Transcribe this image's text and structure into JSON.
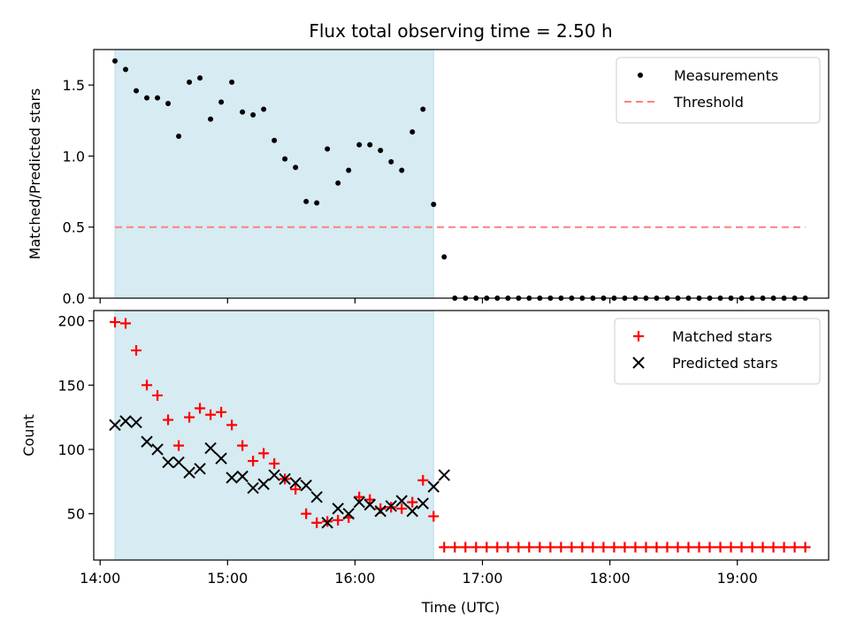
{
  "figure": {
    "title": "Flux total observing time = 2.50 h"
  },
  "colors": {
    "shade": "#add8e6",
    "measurement": "#000000",
    "threshold": "#ff7f7f",
    "matched": "#ff0000",
    "predicted": "#000000"
  },
  "chart_data": [
    {
      "type": "scatter",
      "title": "Flux total observing time = 2.50 h",
      "xlabel": "",
      "ylabel": "Matched/Predicted stars",
      "xlim": [
        "13:57",
        "19:43"
      ],
      "ylim": [
        0,
        1.75
      ],
      "yticks": [
        0.0,
        0.5,
        1.0,
        1.5
      ],
      "ytick_labels": [
        "0.0",
        "0.5",
        "1.0",
        "1.5"
      ],
      "xticks": [
        "14:00",
        "15:00",
        "16:00",
        "17:00",
        "18:00",
        "19:00"
      ],
      "shaded_interval": [
        "14:07",
        "16:37"
      ],
      "legend": "top-right",
      "threshold": {
        "name": "Threshold",
        "value": 0.5,
        "x_range": [
          "14:07",
          "19:32"
        ]
      },
      "series": [
        {
          "name": "Measurements",
          "marker": "dot",
          "x": [
            "14:07",
            "14:12",
            "14:17",
            "14:22",
            "14:27",
            "14:32",
            "14:37",
            "14:42",
            "14:47",
            "14:52",
            "14:57",
            "15:02",
            "15:07",
            "15:12",
            "15:17",
            "15:22",
            "15:27",
            "15:32",
            "15:37",
            "15:42",
            "15:47",
            "15:52",
            "15:57",
            "16:02",
            "16:07",
            "16:12",
            "16:17",
            "16:22",
            "16:27",
            "16:32",
            "16:37",
            "16:42",
            "16:47",
            "16:52",
            "16:57",
            "17:02",
            "17:07",
            "17:12",
            "17:17",
            "17:22",
            "17:27",
            "17:32",
            "17:37",
            "17:42",
            "17:47",
            "17:52",
            "17:57",
            "18:02",
            "18:07",
            "18:12",
            "18:17",
            "18:22",
            "18:27",
            "18:32",
            "18:37",
            "18:42",
            "18:47",
            "18:52",
            "18:57",
            "19:02",
            "19:07",
            "19:12",
            "19:17",
            "19:22",
            "19:27",
            "19:32"
          ],
          "y": [
            1.67,
            1.61,
            1.46,
            1.41,
            1.41,
            1.37,
            1.14,
            1.52,
            1.55,
            1.26,
            1.38,
            1.52,
            1.31,
            1.29,
            1.33,
            1.11,
            0.98,
            0.92,
            0.68,
            0.67,
            1.05,
            0.81,
            0.9,
            1.08,
            1.08,
            1.04,
            0.96,
            0.9,
            1.17,
            1.33,
            0.66,
            0.29,
            0,
            0,
            0,
            0,
            0,
            0,
            0,
            0,
            0,
            0,
            0,
            0,
            0,
            0,
            0,
            0,
            0,
            0,
            0,
            0,
            0,
            0,
            0,
            0,
            0,
            0,
            0,
            0,
            0,
            0,
            0,
            0,
            0,
            0
          ]
        }
      ]
    },
    {
      "type": "scatter",
      "title": "",
      "xlabel": "Time (UTC)",
      "ylabel": "Count",
      "xlim": [
        "13:57",
        "19:43"
      ],
      "ylim": [
        14,
        208
      ],
      "yticks": [
        50,
        100,
        150,
        200
      ],
      "ytick_labels": [
        "50",
        "100",
        "150",
        "200"
      ],
      "xticks": [
        "14:00",
        "15:00",
        "16:00",
        "17:00",
        "18:00",
        "19:00"
      ],
      "xtick_labels": [
        "14:00",
        "15:00",
        "16:00",
        "17:00",
        "18:00",
        "19:00"
      ],
      "shaded_interval": [
        "14:07",
        "16:37"
      ],
      "legend": "top-right",
      "series": [
        {
          "name": "Matched stars",
          "marker": "plus",
          "x": [
            "14:07",
            "14:12",
            "14:17",
            "14:22",
            "14:27",
            "14:32",
            "14:37",
            "14:42",
            "14:47",
            "14:52",
            "14:57",
            "15:02",
            "15:07",
            "15:12",
            "15:17",
            "15:22",
            "15:27",
            "15:32",
            "15:37",
            "15:42",
            "15:47",
            "15:52",
            "15:57",
            "16:02",
            "16:07",
            "16:12",
            "16:17",
            "16:22",
            "16:27",
            "16:32",
            "16:37",
            "16:42",
            "16:47",
            "16:52",
            "16:57",
            "17:02",
            "17:07",
            "17:12",
            "17:17",
            "17:22",
            "17:27",
            "17:32",
            "17:37",
            "17:42",
            "17:47",
            "17:52",
            "17:57",
            "18:02",
            "18:07",
            "18:12",
            "18:17",
            "18:22",
            "18:27",
            "18:32",
            "18:37",
            "18:42",
            "18:47",
            "18:52",
            "18:57",
            "19:02",
            "19:07",
            "19:12",
            "19:17",
            "19:22",
            "19:27",
            "19:32"
          ],
          "y": [
            199,
            198,
            177,
            150,
            142,
            123,
            103,
            125,
            132,
            127,
            129,
            119,
            103,
            91,
            97,
            89,
            77,
            69,
            50,
            43,
            44,
            45,
            47,
            63,
            61,
            54,
            55,
            54,
            59,
            76,
            48,
            24,
            24,
            24,
            24,
            24,
            24,
            24,
            24,
            24,
            24,
            24,
            24,
            24,
            24,
            24,
            24,
            24,
            24,
            24,
            24,
            24,
            24,
            24,
            24,
            24,
            24,
            24,
            24,
            24,
            24,
            24,
            24,
            24,
            24,
            24
          ]
        },
        {
          "name": "Predicted stars",
          "marker": "x",
          "x": [
            "14:07",
            "14:12",
            "14:17",
            "14:22",
            "14:27",
            "14:32",
            "14:37",
            "14:42",
            "14:47",
            "14:52",
            "14:57",
            "15:02",
            "15:07",
            "15:12",
            "15:17",
            "15:22",
            "15:27",
            "15:32",
            "15:37",
            "15:42",
            "15:47",
            "15:52",
            "15:57",
            "16:02",
            "16:07",
            "16:12",
            "16:17",
            "16:22",
            "16:27",
            "16:32",
            "16:37",
            "16:42"
          ],
          "y": [
            119,
            122,
            121,
            106,
            100,
            90,
            90,
            82,
            85,
            101,
            93,
            78,
            79,
            70,
            73,
            80,
            77,
            74,
            72,
            63,
            43,
            54,
            50,
            59,
            57,
            52,
            56,
            60,
            52,
            58,
            71,
            80
          ]
        }
      ]
    }
  ]
}
